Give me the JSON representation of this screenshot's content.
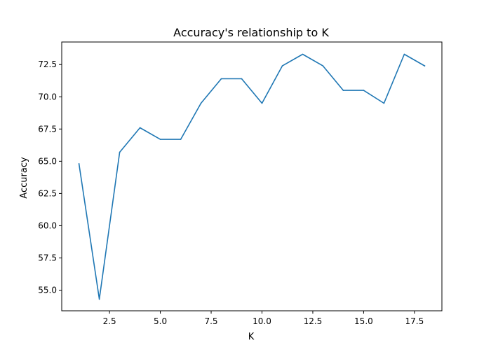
{
  "chart_data": {
    "type": "line",
    "title": "Accuracy's relationship to K",
    "xlabel": "K",
    "ylabel": "Accuracy",
    "xlim": [
      0.15,
      18.85
    ],
    "ylim": [
      53.4,
      74.25
    ],
    "xticks": [
      2.5,
      5.0,
      7.5,
      10.0,
      12.5,
      15.0,
      17.5
    ],
    "xtick_labels": [
      "2.5",
      "5.0",
      "7.5",
      "10.0",
      "12.5",
      "15.0",
      "17.5"
    ],
    "yticks": [
      55.0,
      57.5,
      60.0,
      62.5,
      65.0,
      67.5,
      70.0,
      72.5
    ],
    "ytick_labels": [
      "55.0",
      "57.5",
      "60.0",
      "62.5",
      "65.0",
      "67.5",
      "70.0",
      "72.5"
    ],
    "grid": false,
    "series": [
      {
        "color": "#1f77b4",
        "x": [
          1,
          2,
          3,
          4,
          5,
          6,
          7,
          8,
          9,
          10,
          11,
          12,
          13,
          14,
          15,
          16,
          17,
          18
        ],
        "values": [
          64.8,
          54.3,
          65.7,
          67.6,
          66.7,
          66.7,
          69.5,
          71.4,
          71.4,
          69.5,
          72.4,
          73.3,
          72.4,
          70.5,
          70.5,
          69.5,
          73.3,
          72.4
        ]
      }
    ]
  }
}
